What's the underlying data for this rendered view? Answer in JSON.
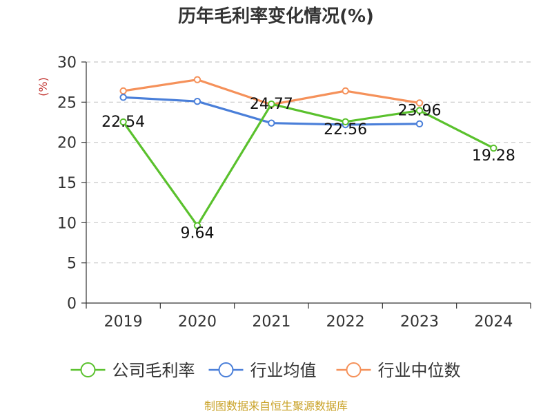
{
  "chart_data": {
    "type": "line",
    "title": "历年毛利率变化情况(%)",
    "ylabel": "(%)",
    "xlabel": "",
    "categories": [
      "2019",
      "2020",
      "2021",
      "2022",
      "2023",
      "2024"
    ],
    "ylim": [
      0,
      30
    ],
    "yticks": [
      0,
      5,
      10,
      15,
      20,
      25,
      30
    ],
    "grid": true,
    "legend_position": "bottom",
    "series": [
      {
        "name": "公司毛利率",
        "color": "#5ac12d",
        "values": [
          22.54,
          9.64,
          24.77,
          22.56,
          23.96,
          19.28
        ],
        "labels": [
          "22.54",
          "9.64",
          "24.77",
          "22.56",
          "23.96",
          "19.28"
        ]
      },
      {
        "name": "行业均值",
        "color": "#4a7fd9",
        "values": [
          25.6,
          25.1,
          22.4,
          22.2,
          22.3,
          null
        ]
      },
      {
        "name": "行业中位数",
        "color": "#f5915a",
        "values": [
          26.4,
          27.8,
          24.7,
          26.4,
          24.9,
          null
        ]
      }
    ]
  },
  "source": "制图数据来自恒生聚源数据库"
}
